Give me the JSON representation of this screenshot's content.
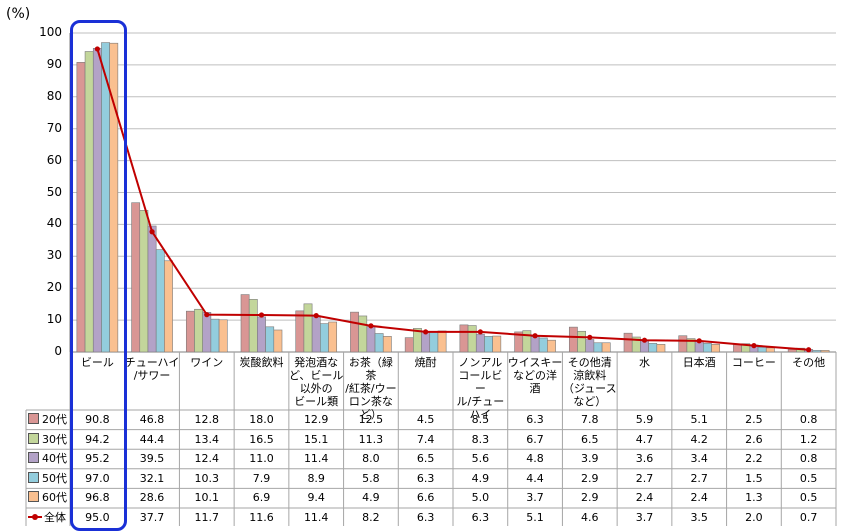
{
  "chart_data": {
    "type": "bar",
    "unit_label": "(%)",
    "ylim": [
      0,
      100
    ],
    "yticks": [
      0,
      10,
      20,
      30,
      40,
      50,
      60,
      70,
      80,
      90,
      100
    ],
    "categories": [
      "ビール",
      "チューハイ/サワー",
      "ワイン",
      "炭酸飲料",
      "発泡酒など、ビール以外のビール類",
      "お茶（緑茶/紅茶/ウーロン茶など）",
      "焼酎",
      "ノンアルコールビール/チューハイ",
      "ウイスキーなどの洋酒",
      "その他清涼飲料（ジュースなど）",
      "水",
      "日本酒",
      "コーヒー",
      "その他"
    ],
    "category_lines": [
      [
        "ビール"
      ],
      [
        "チューハイ",
        "/サワー"
      ],
      [
        "ワイン"
      ],
      [
        "炭酸飲料"
      ],
      [
        "発泡酒な",
        "ど、ビール",
        "以外の",
        "ビール類"
      ],
      [
        "お茶（緑茶",
        "/紅茶/ウー",
        "ロン茶な",
        "ど）"
      ],
      [
        "焼酎"
      ],
      [
        "ノンアル",
        "コールビー",
        "ル/チュー",
        "ハイ"
      ],
      [
        "ウイスキー",
        "などの洋酒"
      ],
      [
        "その他清",
        "涼飲料",
        "（ジュース",
        "など）"
      ],
      [
        "水"
      ],
      [
        "日本酒"
      ],
      [
        "コーヒー"
      ],
      [
        "その他"
      ]
    ],
    "series": [
      {
        "name": "20代",
        "color": "#d99694",
        "values": [
          90.8,
          46.8,
          12.8,
          18.0,
          12.9,
          12.5,
          4.5,
          8.5,
          6.3,
          7.8,
          5.9,
          5.1,
          2.5,
          0.8
        ]
      },
      {
        "name": "30代",
        "color": "#c3d69b",
        "values": [
          94.2,
          44.4,
          13.4,
          16.5,
          15.1,
          11.3,
          7.4,
          8.3,
          6.7,
          6.5,
          4.7,
          4.2,
          2.6,
          1.2
        ]
      },
      {
        "name": "40代",
        "color": "#b3a2c7",
        "values": [
          95.2,
          39.5,
          12.4,
          11.0,
          11.4,
          8.0,
          6.5,
          5.6,
          4.8,
          3.9,
          3.6,
          3.4,
          2.2,
          0.8
        ]
      },
      {
        "name": "50代",
        "color": "#93cddd",
        "values": [
          97.0,
          32.1,
          10.3,
          7.9,
          8.9,
          5.8,
          6.3,
          4.9,
          4.4,
          2.9,
          2.7,
          2.7,
          1.5,
          0.5
        ]
      },
      {
        "name": "60代",
        "color": "#fac090",
        "values": [
          96.8,
          28.6,
          10.1,
          6.9,
          9.4,
          4.9,
          6.6,
          5.0,
          3.7,
          2.9,
          2.4,
          2.4,
          1.3,
          0.5
        ]
      }
    ],
    "line_series": {
      "name": "全体",
      "color": "#c00000",
      "values": [
        95.0,
        37.7,
        11.7,
        11.6,
        11.4,
        8.2,
        6.3,
        6.3,
        5.1,
        4.6,
        3.7,
        3.5,
        2.0,
        0.7
      ]
    },
    "table_values": {
      "20代": [
        "90.8",
        "46.8",
        "12.8",
        "18.0",
        "12.9",
        "12.5",
        "4.5",
        "8.5",
        "6.3",
        "7.8",
        "5.9",
        "5.1",
        "2.5",
        "0.8"
      ],
      "30代": [
        "94.2",
        "44.4",
        "13.4",
        "16.5",
        "15.1",
        "11.3",
        "7.4",
        "8.3",
        "6.7",
        "6.5",
        "4.7",
        "4.2",
        "2.6",
        "1.2"
      ],
      "40代": [
        "95.2",
        "39.5",
        "12.4",
        "11.0",
        "11.4",
        "8.0",
        "6.5",
        "5.6",
        "4.8",
        "3.9",
        "3.6",
        "3.4",
        "2.2",
        "0.8"
      ],
      "50代": [
        "97.0",
        "32.1",
        "10.3",
        "7.9",
        "8.9",
        "5.8",
        "6.3",
        "4.9",
        "4.4",
        "2.9",
        "2.7",
        "2.7",
        "1.5",
        "0.5"
      ],
      "60代": [
        "96.8",
        "28.6",
        "10.1",
        "6.9",
        "9.4",
        "4.9",
        "6.6",
        "5.0",
        "3.7",
        "2.9",
        "2.4",
        "2.4",
        "1.3",
        "0.5"
      ],
      "全体": [
        "95.0",
        "37.7",
        "11.7",
        "11.6",
        "11.4",
        "8.2",
        "6.3",
        "6.3",
        "5.1",
        "4.6",
        "3.7",
        "3.5",
        "2.0",
        "0.7"
      ]
    },
    "grid": true,
    "legend": "data-table-left",
    "highlight_color": "#1a30d6"
  }
}
